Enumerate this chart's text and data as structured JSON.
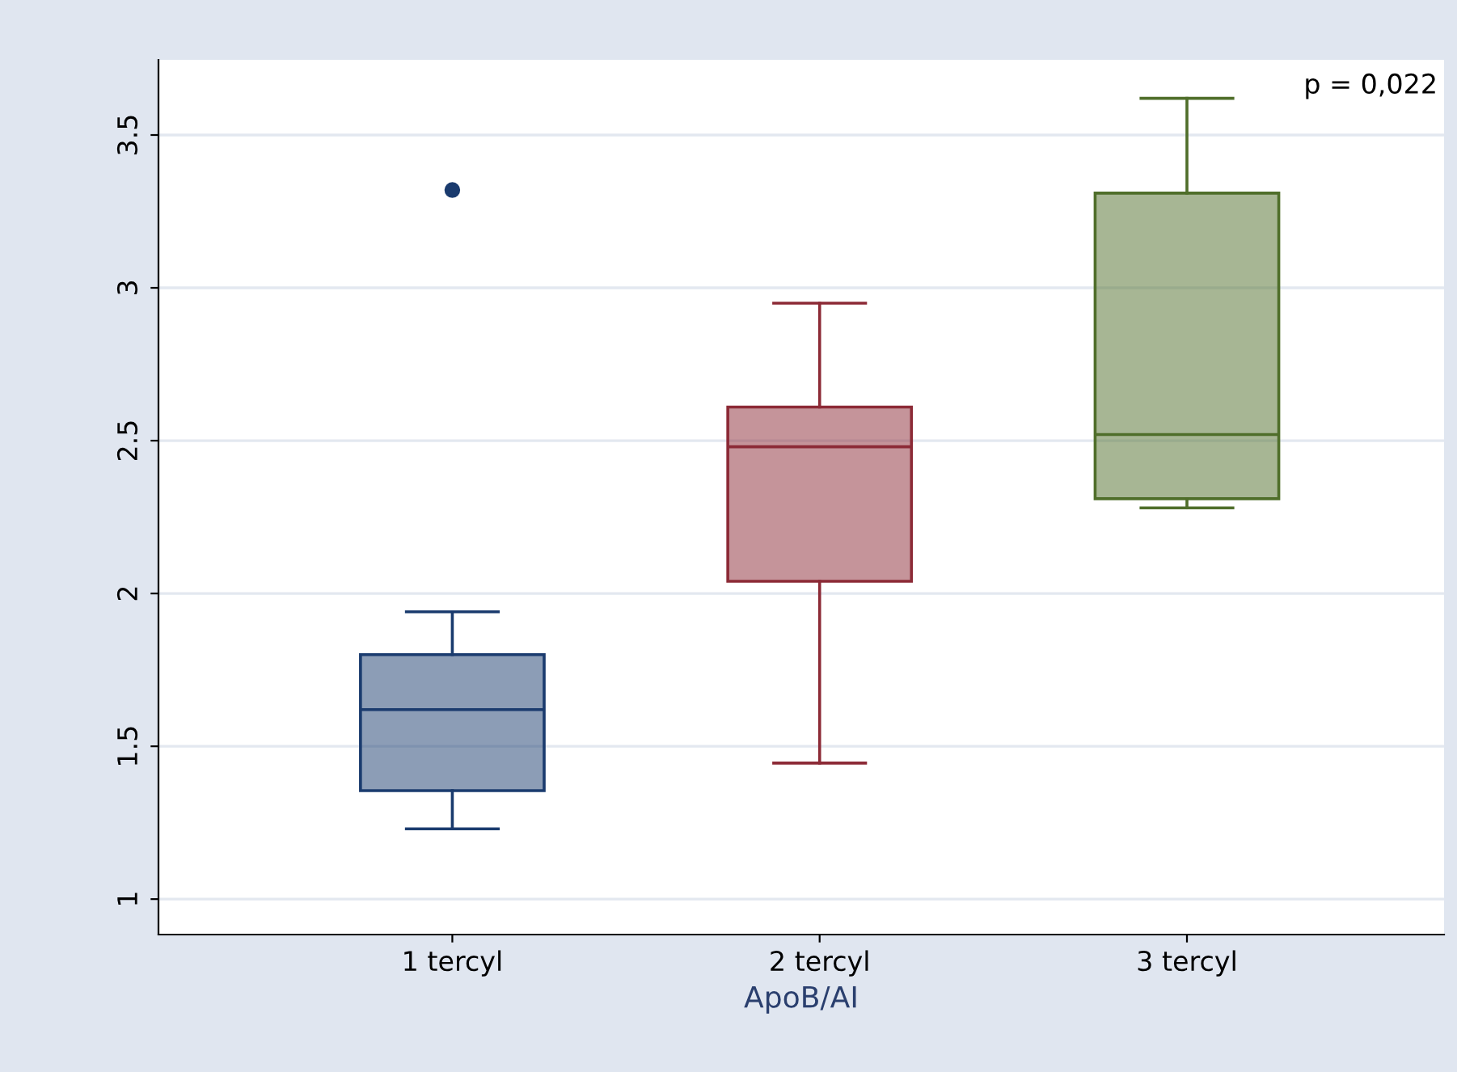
{
  "chart_data": {
    "type": "box",
    "categories": [
      "1 tercyl",
      "2 tercyl",
      "3 tercyl"
    ],
    "boxes": [
      {
        "low": 1.23,
        "q1": 1.355,
        "median": 1.62,
        "q3": 1.8,
        "high": 1.94,
        "outliers": [
          3.32
        ]
      },
      {
        "low": 1.445,
        "q1": 2.04,
        "median": 2.48,
        "q3": 2.61,
        "high": 2.95
      },
      {
        "low": 2.28,
        "q1": 2.31,
        "median": 2.52,
        "q3": 3.31,
        "high": 3.62
      }
    ],
    "colors": [
      "#1a3b6e",
      "#8c2a36",
      "#4f6e2a"
    ],
    "xlabel": "ApoB/AI",
    "ylim": [
      0.884,
      3.746
    ],
    "yticks": [
      1,
      1.5,
      2,
      2.5,
      3,
      3.5
    ],
    "grid": "y",
    "annotations": [
      "p = 0,022"
    ]
  }
}
